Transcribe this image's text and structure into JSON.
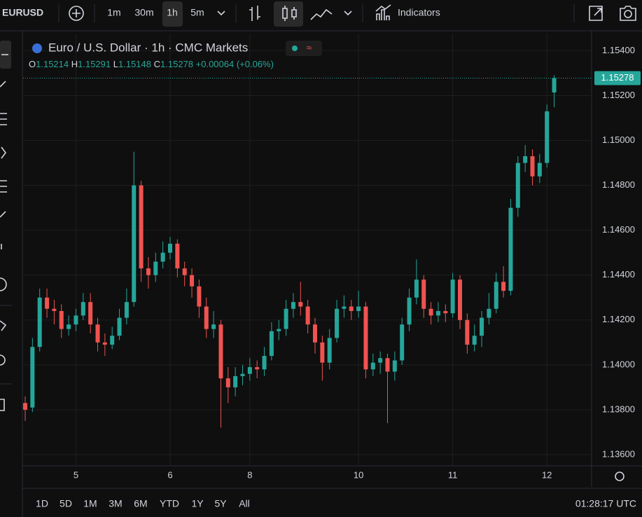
{
  "toolbar": {
    "symbol": "EURUSD",
    "intervals": [
      "1m",
      "30m",
      "1h",
      "5m"
    ],
    "indicators": "Indicators"
  },
  "chart_data": {
    "type": "candlestick",
    "title": "Euro / U.S. Dollar · 1h · CMC Markets",
    "ohlc_labels": [
      "O",
      "H",
      "L",
      "C"
    ],
    "change": "+0.00064 (+0.06%)",
    "up_color": "#26a69a",
    "down_color": "#ef5350",
    "grid": true,
    "categories": [
      null,
      null,
      null,
      null,
      null,
      null,
      null,
      "5",
      null,
      null,
      null,
      null,
      null,
      null,
      null,
      null,
      null,
      null,
      null,
      null,
      "6",
      null,
      null,
      null,
      null,
      null,
      null,
      null,
      null,
      null,
      null,
      "8",
      null,
      null,
      null,
      null,
      null,
      null,
      null,
      null,
      null,
      null,
      null,
      null,
      null,
      null,
      "10",
      null,
      null,
      null,
      null,
      null,
      null,
      null,
      null,
      null,
      null,
      null,
      null,
      "11",
      null,
      null,
      null,
      null,
      null,
      null,
      null,
      null,
      null,
      null,
      null,
      null,
      "12",
      null
    ],
    "open": [
      1.1383,
      1.1381,
      1.1408,
      1.143,
      1.1425,
      1.1424,
      1.1416,
      1.1418,
      1.1422,
      1.1428,
      1.1418,
      1.141,
      1.1409,
      1.1413,
      1.1421,
      1.1428,
      1.148,
      1.1443,
      1.144,
      1.1446,
      1.145,
      1.1454,
      1.1443,
      1.144,
      1.1435,
      1.1426,
      1.1416,
      1.1418,
      1.1394,
      1.139,
      1.1395,
      1.1396,
      1.1399,
      1.1398,
      1.1404,
      1.1415,
      1.1416,
      1.1425,
      1.1428,
      1.1426,
      1.1418,
      1.141,
      1.1401,
      1.1412,
      1.1425,
      1.1426,
      1.1424,
      1.1426,
      1.1398,
      1.1401,
      1.1403,
      1.1397,
      1.1402,
      1.1418,
      1.143,
      1.1438,
      1.1425,
      1.1422,
      1.1424,
      1.1423,
      1.1438,
      1.142,
      1.1409,
      1.1413,
      1.1421,
      1.1425,
      1.1437,
      1.1433,
      1.147,
      1.149,
      1.1493,
      1.1484,
      1.149,
      1.15214
    ],
    "high": [
      1.1386,
      1.1412,
      1.1434,
      1.1434,
      1.1429,
      1.1427,
      1.1422,
      1.1425,
      1.1432,
      1.1432,
      1.1421,
      1.1414,
      1.1417,
      1.1425,
      1.1434,
      1.1495,
      1.1482,
      1.1448,
      1.145,
      1.1455,
      1.1457,
      1.1456,
      1.1446,
      1.1443,
      1.1438,
      1.143,
      1.1424,
      1.142,
      1.1399,
      1.1399,
      1.14,
      1.1403,
      1.1402,
      1.1408,
      1.1419,
      1.142,
      1.1429,
      1.1432,
      1.1437,
      1.1429,
      1.1421,
      1.1413,
      1.1416,
      1.1429,
      1.1431,
      1.1429,
      1.1433,
      1.1428,
      1.1405,
      1.1406,
      1.1405,
      1.1406,
      1.1421,
      1.1434,
      1.1447,
      1.144,
      1.1428,
      1.1428,
      1.1427,
      1.1441,
      1.144,
      1.1423,
      1.1418,
      1.1424,
      1.1432,
      1.1441,
      1.1444,
      1.1474,
      1.1493,
      1.1498,
      1.1496,
      1.1494,
      1.1516,
      1.15291
    ],
    "low": [
      1.1375,
      1.1379,
      1.1406,
      1.1421,
      1.1418,
      1.1412,
      1.1413,
      1.1415,
      1.142,
      1.1414,
      1.1406,
      1.1404,
      1.1407,
      1.1411,
      1.1418,
      1.1426,
      1.1437,
      1.1434,
      1.1437,
      1.1443,
      1.1447,
      1.1439,
      1.1435,
      1.143,
      1.1421,
      1.1412,
      1.1412,
      1.1372,
      1.1383,
      1.1386,
      1.1391,
      1.1393,
      1.1394,
      1.1395,
      1.1402,
      1.1411,
      1.1413,
      1.1421,
      1.1422,
      1.1414,
      1.1405,
      1.1393,
      1.1398,
      1.141,
      1.1421,
      1.142,
      1.1421,
      1.1394,
      1.1395,
      1.1396,
      1.1374,
      1.1393,
      1.14,
      1.1415,
      1.1427,
      1.1421,
      1.1418,
      1.1419,
      1.1419,
      1.1421,
      1.1416,
      1.1405,
      1.1406,
      1.1408,
      1.1418,
      1.1423,
      1.143,
      1.1431,
      1.1466,
      1.1486,
      1.148,
      1.1481,
      1.1488,
      1.15148
    ],
    "close": [
      1.138,
      1.1408,
      1.143,
      1.1425,
      1.1424,
      1.1416,
      1.1418,
      1.1422,
      1.1428,
      1.1418,
      1.141,
      1.1409,
      1.1413,
      1.1421,
      1.1428,
      1.148,
      1.1443,
      1.144,
      1.1446,
      1.145,
      1.1454,
      1.1443,
      1.144,
      1.1435,
      1.1426,
      1.1416,
      1.1418,
      1.1394,
      1.139,
      1.1395,
      1.1396,
      1.1399,
      1.1398,
      1.1404,
      1.1415,
      1.1416,
      1.1425,
      1.1428,
      1.1426,
      1.1418,
      1.141,
      1.1401,
      1.1412,
      1.1425,
      1.1426,
      1.1424,
      1.1426,
      1.1398,
      1.1401,
      1.1403,
      1.1397,
      1.1402,
      1.1418,
      1.143,
      1.1438,
      1.1425,
      1.1422,
      1.1424,
      1.1423,
      1.1438,
      1.142,
      1.1409,
      1.1413,
      1.1421,
      1.1425,
      1.1437,
      1.1433,
      1.147,
      1.149,
      1.1493,
      1.1484,
      1.149,
      1.1513,
      1.15278
    ],
    "ylim": [
      1.1355,
      1.1547
    ],
    "yticks": [
      {
        "value": 1.136,
        "label": "1.13600"
      },
      {
        "value": 1.138,
        "label": "1.13800"
      },
      {
        "value": 1.14,
        "label": "1.14000"
      },
      {
        "value": 1.142,
        "label": "1.14200"
      },
      {
        "value": 1.144,
        "label": "1.14400"
      },
      {
        "value": 1.146,
        "label": "1.14600"
      },
      {
        "value": 1.148,
        "label": "1.14800"
      },
      {
        "value": 1.15,
        "label": "1.15000"
      },
      {
        "value": 1.152,
        "label": "1.15200"
      },
      {
        "value": 1.154,
        "label": "1.15400"
      }
    ]
  },
  "ranges": [
    "1D",
    "5D",
    "1M",
    "3M",
    "6M",
    "YTD",
    "1Y",
    "5Y",
    "All"
  ],
  "clock": "01:28:17 UTC"
}
